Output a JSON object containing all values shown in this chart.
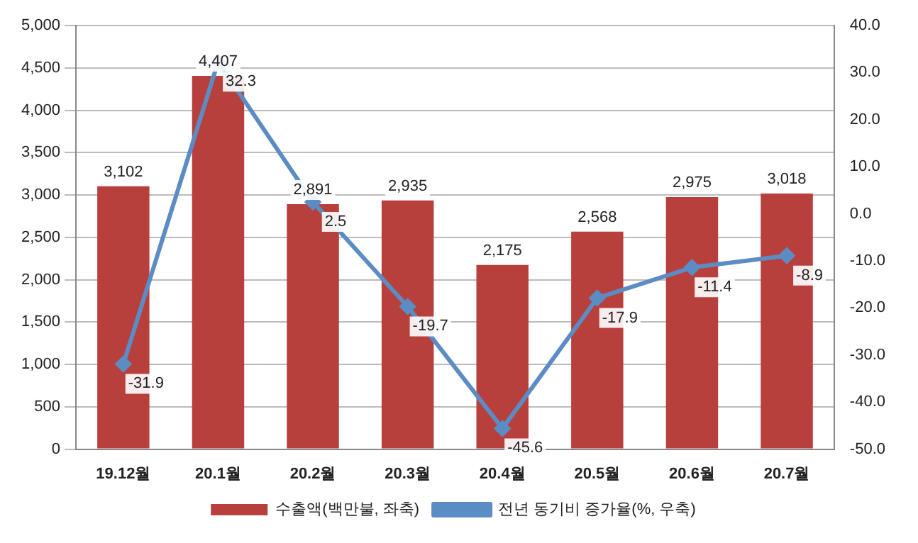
{
  "chart_data": {
    "type": "bar",
    "categories": [
      "19.12월",
      "20.1월",
      "20.2월",
      "20.3월",
      "20.4월",
      "20.5월",
      "20.6월",
      "20.7월"
    ],
    "series": [
      {
        "name": "수출액(백만불, 좌축)",
        "color": "#b8403c",
        "values": [
          3102,
          4407,
          2891,
          2935,
          2175,
          2568,
          2975,
          3018
        ],
        "value_labels": [
          "3,102",
          "4,407",
          "2,891",
          "2,935",
          "2,175",
          "2,568",
          "2,975",
          "3,018"
        ]
      },
      {
        "name": "전년 동기비 증가율(%, 우축)",
        "type": "line",
        "axis": "y2",
        "color": "#5b8cc4",
        "marker": "diamond",
        "values": [
          -31.9,
          32.3,
          2.5,
          -19.7,
          -45.6,
          -17.9,
          -11.4,
          -8.9
        ],
        "value_labels": [
          "-31.9",
          "32.3",
          "2.5",
          "-19.7",
          "-45.6",
          "-17.9",
          "-11.4",
          "-8.9"
        ]
      }
    ],
    "ylim": [
      0,
      5000
    ],
    "yticks": [
      {
        "value": 0,
        "label": "0"
      },
      {
        "value": 500,
        "label": "500"
      },
      {
        "value": 1000,
        "label": "1,000"
      },
      {
        "value": 1500,
        "label": "1,500"
      },
      {
        "value": 2000,
        "label": "2,000"
      },
      {
        "value": 2500,
        "label": "2,500"
      },
      {
        "value": 3000,
        "label": "3,000"
      },
      {
        "value": 3500,
        "label": "3,500"
      },
      {
        "value": 4000,
        "label": "4,000"
      },
      {
        "value": 4500,
        "label": "4,500"
      },
      {
        "value": 5000,
        "label": "5,000"
      }
    ],
    "y2lim": [
      -50,
      40
    ],
    "y2ticks": [
      {
        "value": -50,
        "label": "-50.0"
      },
      {
        "value": -40,
        "label": "-40.0"
      },
      {
        "value": -30,
        "label": "-30.0"
      },
      {
        "value": -20,
        "label": "-20.0"
      },
      {
        "value": -10,
        "label": "-10.0"
      },
      {
        "value": 0,
        "label": "0.0"
      },
      {
        "value": 10,
        "label": "10.0"
      },
      {
        "value": 20,
        "label": "20.0"
      },
      {
        "value": 30,
        "label": "30.0"
      },
      {
        "value": 40,
        "label": "40.0"
      }
    ],
    "grid": "y",
    "legend": "bottom"
  }
}
